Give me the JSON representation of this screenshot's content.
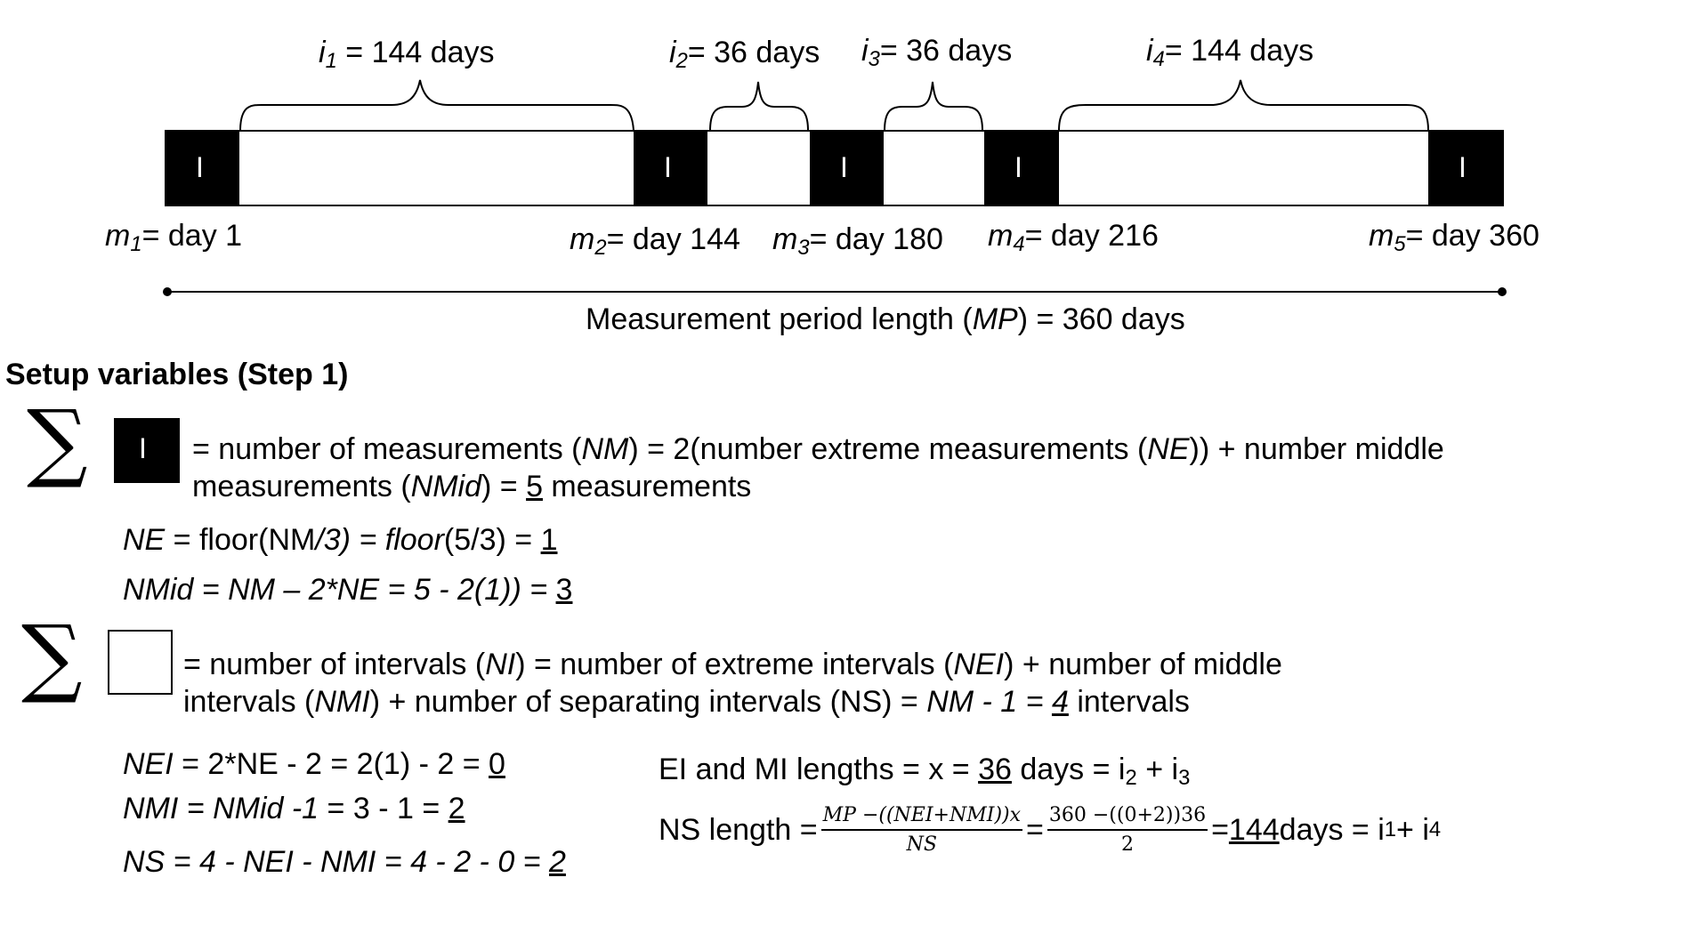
{
  "timeline": {
    "intervals": [
      {
        "var": "i",
        "sub": "1",
        "eq": " = ",
        "value": "144 days"
      },
      {
        "var": "i",
        "sub": "2",
        "eq": "= ",
        "value": "36 days"
      },
      {
        "var": "i",
        "sub": "3",
        "eq": "= ",
        "value": "36 days"
      },
      {
        "var": "i",
        "sub": "4",
        "eq": "= ",
        "value": "144 days"
      }
    ],
    "measurement_symbol": "I",
    "measurements": [
      {
        "var": "m",
        "sub": "1",
        "eq": "= ",
        "value": "day 1"
      },
      {
        "var": "m",
        "sub": "2",
        "eq": "= ",
        "value": "day 144"
      },
      {
        "var": "m",
        "sub": "3",
        "eq": "= ",
        "value": "day 180"
      },
      {
        "var": "m",
        "sub": "4",
        "eq": "= ",
        "value": "day 216"
      },
      {
        "var": "m",
        "sub": "5",
        "eq": "= ",
        "value": "day 360"
      }
    ],
    "period": {
      "pre": "Measurement period length (",
      "var": "MP",
      "post": ") = 360 days"
    }
  },
  "setup": {
    "heading": "Setup variables (Step 1)",
    "sigma": "∑",
    "measurements_line1": {
      "a": "= number of measurements (",
      "b": "NM",
      "c": ") = 2(number extreme measurements (",
      "d": "NE",
      "e": ")) + number middle"
    },
    "measurements_line2": {
      "a": "measurements (",
      "b": "NMid",
      "c": ") =   ",
      "d": "5",
      "e": " measurements"
    },
    "ne_line": {
      "a": "NE",
      "b": "  = floor(NM",
      "c": "/3) = floor",
      "d": "(5/3) = ",
      "e": "1"
    },
    "nmid_line": {
      "a": "NMid  = NM – 2*NE = 5 - 2(1)) = ",
      "b": "3"
    },
    "intervals_line1": {
      "a": "= number of intervals (",
      "b": "NI",
      "c": ") = number of extreme intervals (",
      "d": "NEI",
      "e": ") + number of middle"
    },
    "intervals_line2": {
      "a": "intervals (",
      "b": "NMI",
      "c": ") + number of separating intervals (NS) = ",
      "d": "NM - 1 = ",
      "e": "4",
      "f": " intervals"
    },
    "nei_line": {
      "a": "NEI",
      "b": "  = 2*NE - 2 = 2(1) - 2 = ",
      "c": "0"
    },
    "nmi_line": {
      "a": "NMI  = NMid -1",
      "b": " = 3 - 1 = ",
      "c": "2"
    },
    "ns_line": {
      "a": "NS  = 4 - NEI - NMI = 4 - 2 - 0 = ",
      "b": "2"
    },
    "ei_line": {
      "a": "EI and MI lengths = x = ",
      "b": "36",
      "c": " days = i",
      "d": "2",
      "e": " + i",
      "f": "3"
    },
    "ns_length": {
      "label": "NS length = ",
      "frac1_num": "MP −((NEI+NMI))x",
      "frac1_den": "NS",
      "eq": " = ",
      "frac2_num": "360 −((0+2))36",
      "frac2_den": "2",
      "eq2": " = ",
      "value": "144",
      "tail": " days = i",
      "sub1": "1",
      "plus": " + i",
      "sub2": "4"
    }
  }
}
